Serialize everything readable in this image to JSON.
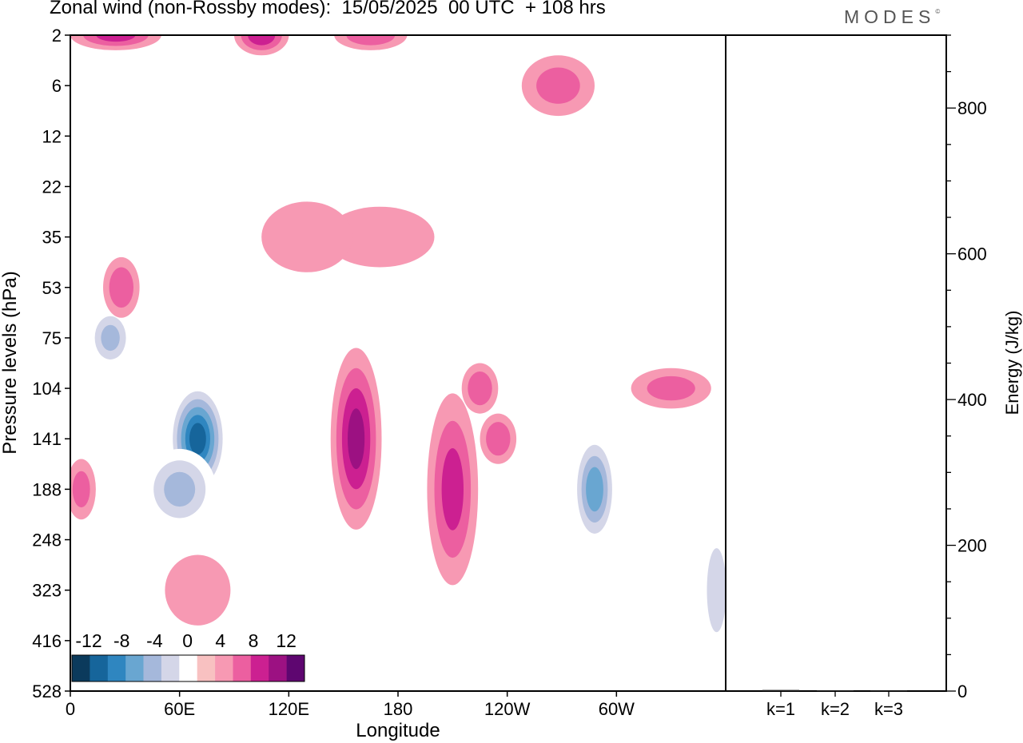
{
  "title": "Zonal wind (non-Rossby modes):  15/05/2025  00 UTC  + 108 hrs",
  "logo": "MODES",
  "logo_mark": "©",
  "colors": {
    "neg": [
      "#0b3a5c",
      "#16659b",
      "#2f86c0",
      "#69a6d1",
      "#a5b8db",
      "#d4d6e8"
    ],
    "neu": "#ffffff",
    "pos": [
      "#f8c1c1",
      "#f799b3",
      "#ec5fa0",
      "#cc2091",
      "#9c1182",
      "#5e0670"
    ]
  },
  "chart_data": [
    {
      "type": "heatmap",
      "title": "Zonal wind (non-Rossby modes):  15/05/2025  00 UTC  + 108 hrs",
      "xlabel": "Longitude",
      "ylabel": "Pressure levels (hPa)",
      "x_ticks": [
        "0",
        "60E",
        "120E",
        "180",
        "120W",
        "60W"
      ],
      "x_tick_lon": [
        0,
        60,
        120,
        180,
        240,
        300
      ],
      "xlim": [
        0,
        360
      ],
      "y_ticks": [
        "2",
        "6",
        "12",
        "22",
        "35",
        "53",
        "75",
        "104",
        "141",
        "188",
        "248",
        "323",
        "416",
        "528"
      ],
      "y_scale": "model levels (top 2 hPa, bottom 528 hPa)",
      "colorbar": {
        "ticks": [
          "-12",
          "-8",
          "-4",
          "0",
          "4",
          "8",
          "12"
        ],
        "levels": [
          -14,
          -12,
          -10,
          -8,
          -6,
          -4,
          -2,
          2,
          4,
          6,
          8,
          10,
          12,
          14
        ]
      },
      "features": [
        {
          "lon": 70,
          "level": 141,
          "value": -13,
          "lon_extent": 16,
          "level_extent": 2.2
        },
        {
          "lon": 60,
          "level": 188,
          "value": -6,
          "lon_extent": 20,
          "level_extent": 1.6
        },
        {
          "lon": 288,
          "level": 188,
          "value": -9,
          "lon_extent": 12,
          "level_extent": 2.2
        },
        {
          "lon": 22,
          "level": 75,
          "value": -6,
          "lon_extent": 12,
          "level_extent": 1.2
        },
        {
          "lon": 157,
          "level": 141,
          "value": 8,
          "lon_extent": 14,
          "level_extent": 3.6
        },
        {
          "lon": 210,
          "level": 188,
          "value": 6,
          "lon_extent": 14,
          "level_extent": 3.8
        },
        {
          "lon": 6,
          "level": 188,
          "value": 4,
          "lon_extent": 8,
          "level_extent": 1.2
        },
        {
          "lon": 28,
          "level": 53,
          "value": 5,
          "lon_extent": 10,
          "level_extent": 1.2
        },
        {
          "lon": 225,
          "level": 104,
          "value": 5,
          "lon_extent": 10,
          "level_extent": 1.0
        },
        {
          "lon": 235,
          "level": 141,
          "value": 5,
          "lon_extent": 10,
          "level_extent": 1.0
        },
        {
          "lon": 330,
          "level": 104,
          "value": 4,
          "lon_extent": 22,
          "level_extent": 0.8
        },
        {
          "lon": 268,
          "level": 6,
          "value": 4,
          "lon_extent": 20,
          "level_extent": 1.2
        },
        {
          "lon": 170,
          "level": 35,
          "value": 3,
          "lon_extent": 30,
          "level_extent": 1.2
        },
        {
          "lon": 130,
          "level": 35,
          "value": 3,
          "lon_extent": 25,
          "level_extent": 1.4
        },
        {
          "lon": 25,
          "level": 2,
          "value": 6,
          "lon_extent": 25,
          "level_extent": 0.6
        },
        {
          "lon": 105,
          "level": 2,
          "value": 7,
          "lon_extent": 15,
          "level_extent": 0.8
        },
        {
          "lon": 165,
          "level": 2,
          "value": 5,
          "lon_extent": 20,
          "level_extent": 0.6
        },
        {
          "lon": 70,
          "level": 323,
          "value": 3,
          "lon_extent": 18,
          "level_extent": 1.4
        },
        {
          "lon": 355,
          "level": 323,
          "value": -5,
          "lon_extent": 8,
          "level_extent": 2.5
        }
      ]
    },
    {
      "type": "bar",
      "ylabel": "Energy (J/kg)",
      "categories": [
        "k=1",
        "k=2",
        "k=3"
      ],
      "values": [
        1.5,
        1.0,
        0.8
      ],
      "ylim": [
        0,
        900
      ],
      "y_ticks": [
        0,
        200,
        400,
        600,
        800
      ]
    }
  ]
}
